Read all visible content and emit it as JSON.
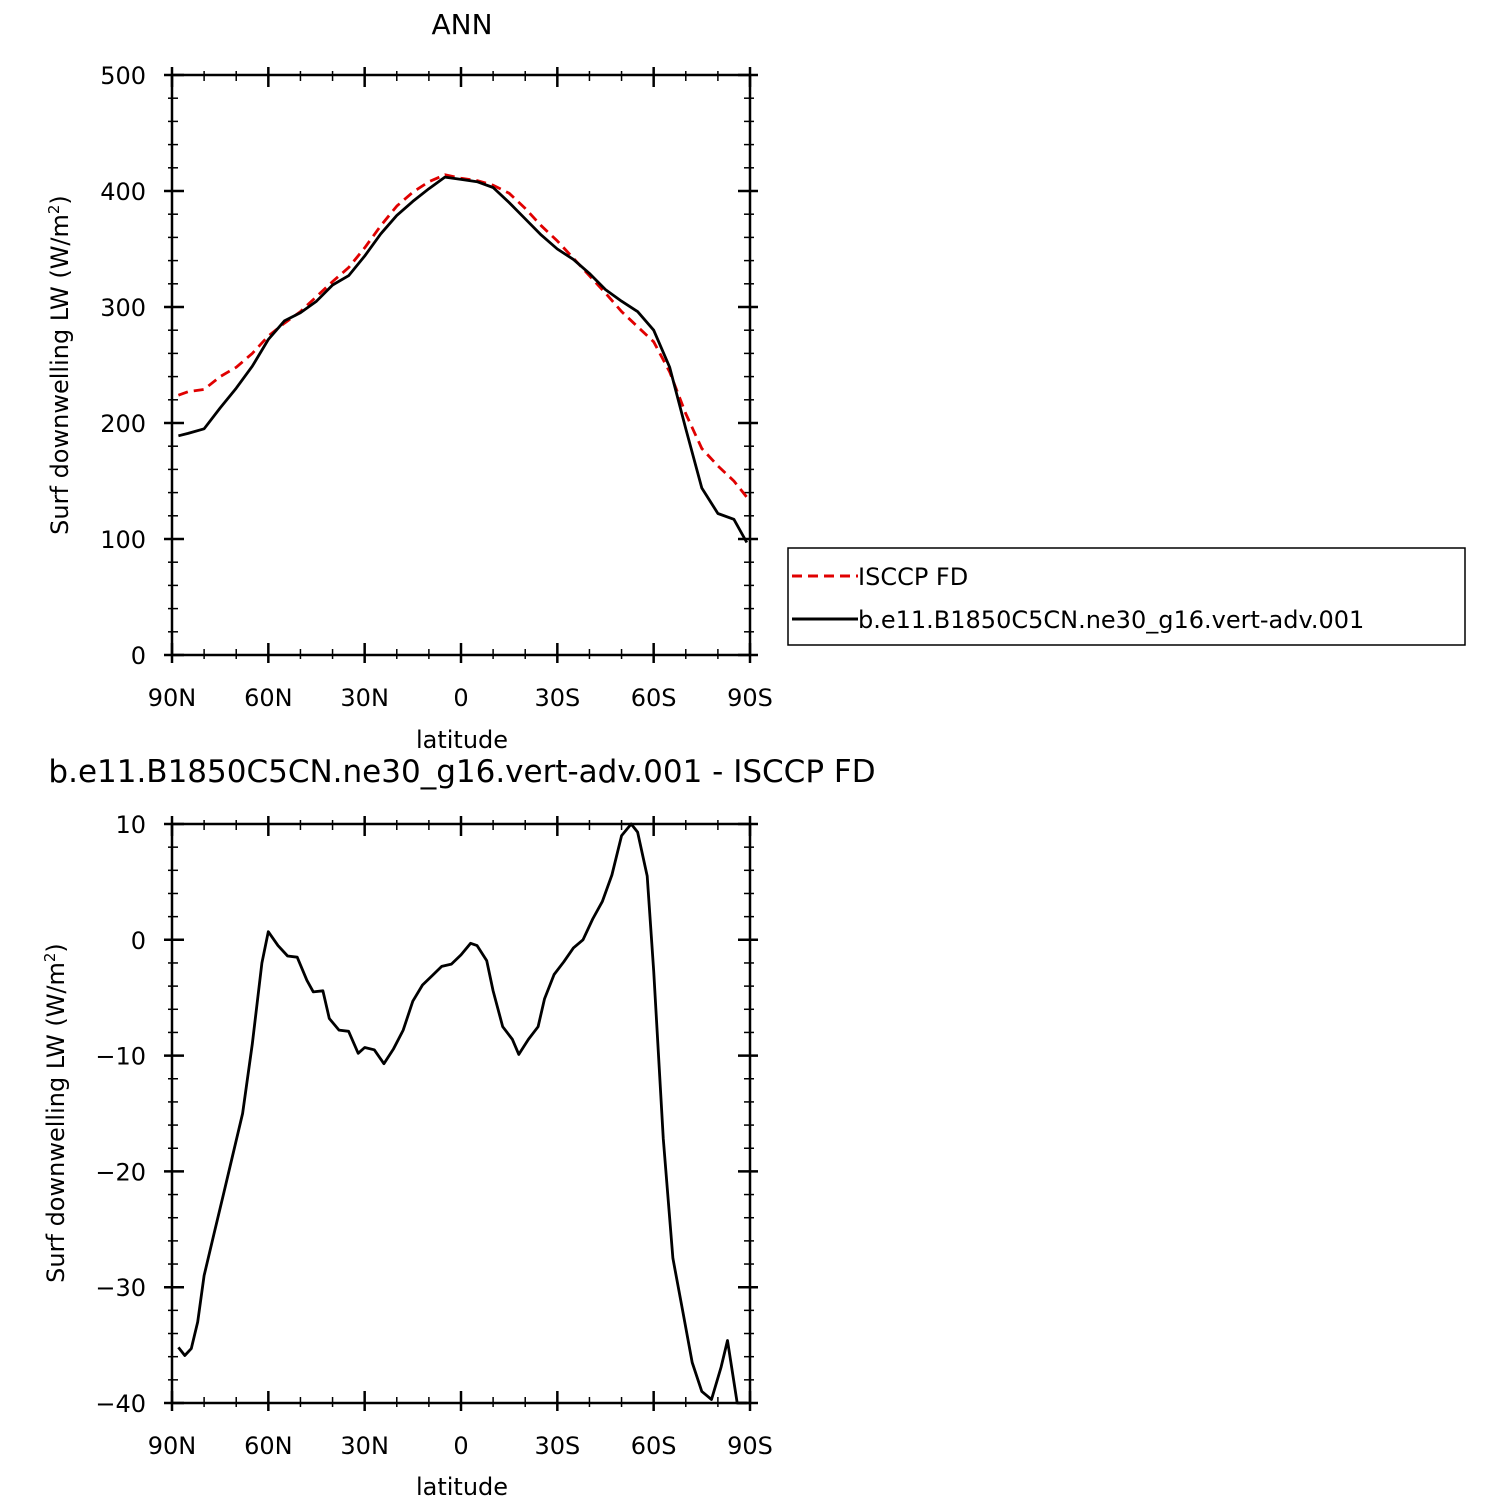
{
  "chart_data": [
    {
      "type": "line",
      "title": "ANN",
      "xlabel": "latitude",
      "ylabel": "Surf downwelling LW (W/m",
      "ylabel_sup": "2",
      "ylabel_close": ")",
      "xlim": [
        90,
        -90
      ],
      "ylim": [
        0,
        500
      ],
      "x_ticks": [
        90,
        60,
        30,
        0,
        -30,
        -60,
        -90
      ],
      "x_tick_labels": [
        "90N",
        "60N",
        "30N",
        "0",
        "30S",
        "60S",
        "90S"
      ],
      "y_ticks": [
        0,
        100,
        200,
        300,
        400,
        500
      ],
      "y_tick_labels": [
        "0",
        "100",
        "200",
        "300",
        "400",
        "500"
      ],
      "legend_position": "right, outside plot",
      "series": [
        {
          "name": "ISCCP FD",
          "color": "#e00000",
          "dash": "dashed",
          "x": [
            88,
            85,
            80,
            75,
            70,
            65,
            60,
            55,
            50,
            45,
            40,
            35,
            30,
            25,
            20,
            15,
            10,
            5,
            0,
            -5,
            -10,
            -15,
            -20,
            -25,
            -30,
            -35,
            -40,
            -45,
            -50,
            -55,
            -60,
            -65,
            -70,
            -75,
            -80,
            -85,
            -89
          ],
          "y": [
            224,
            227,
            229,
            240,
            248,
            260,
            275,
            286,
            296,
            309,
            322,
            334,
            351,
            370,
            387,
            399,
            408,
            414,
            411,
            409,
            405,
            398,
            385,
            370,
            357,
            342,
            327,
            312,
            296,
            283,
            270,
            244,
            208,
            178,
            163,
            150,
            136
          ]
        },
        {
          "name": "b.e11.B1850C5CN.ne30_g16.vert-adv.001",
          "color": "#000000",
          "dash": "solid",
          "x": [
            88,
            85,
            80,
            75,
            70,
            65,
            60,
            55,
            50,
            45,
            40,
            35,
            30,
            25,
            20,
            15,
            10,
            5,
            0,
            -5,
            -10,
            -15,
            -20,
            -25,
            -30,
            -35,
            -40,
            -45,
            -50,
            -55,
            -60,
            -65,
            -70,
            -75,
            -80,
            -85,
            -89
          ],
          "y": [
            189,
            191,
            195,
            213,
            230,
            249,
            272,
            288,
            295,
            305,
            319,
            327,
            344,
            363,
            379,
            391,
            402,
            412,
            410,
            408,
            403,
            390,
            376,
            362,
            350,
            341,
            329,
            315,
            305,
            296,
            280,
            248,
            195,
            144,
            122,
            117,
            97
          ]
        }
      ]
    },
    {
      "type": "line",
      "title": "b.e11.B1850C5CN.ne30_g16.vert-adv.001 - ISCCP FD",
      "xlabel": "latitude",
      "ylabel": "Surf downwelling LW (W/m",
      "ylabel_sup": "2",
      "ylabel_close": ")",
      "xlim": [
        90,
        -90
      ],
      "ylim": [
        -40,
        10
      ],
      "x_ticks": [
        90,
        60,
        30,
        0,
        -30,
        -60,
        -90
      ],
      "x_tick_labels": [
        "90N",
        "60N",
        "30N",
        "0",
        "30S",
        "60S",
        "90S"
      ],
      "y_ticks": [
        10,
        0,
        -10,
        -20,
        -30,
        -40
      ],
      "y_tick_labels": [
        "10",
        "0",
        "−10",
        "−20",
        "−30",
        "−40"
      ],
      "series": [
        {
          "color": "#000000",
          "x": [
            88,
            86,
            84,
            82,
            80,
            77,
            74,
            71,
            68,
            65,
            62,
            60,
            57,
            54,
            51,
            48,
            46,
            43,
            41,
            38,
            35,
            32,
            30,
            27,
            24,
            21,
            18,
            15,
            12,
            9,
            6,
            3,
            0,
            -3,
            -5,
            -8,
            -10,
            -13,
            -16,
            -18,
            -21,
            -24,
            -26,
            -29,
            -32,
            -35,
            -38,
            -41,
            -44,
            -47,
            -50,
            -53,
            -55,
            -58,
            -60,
            -63,
            -66,
            -69,
            -72,
            -75,
            -78,
            -81,
            -83,
            -86,
            -89
          ],
          "y": [
            -35.2,
            -35.9,
            -35.3,
            -33,
            -29,
            -25.5,
            -22,
            -18.5,
            -15,
            -9,
            -2,
            0.7,
            -0.5,
            -1.4,
            -1.5,
            -3.5,
            -4.5,
            -4.4,
            -6.8,
            -7.8,
            -7.9,
            -9.8,
            -9.3,
            -9.5,
            -10.7,
            -9.4,
            -7.8,
            -5.3,
            -3.9,
            -3.1,
            -2.3,
            -2.1,
            -1.3,
            -0.3,
            -0.5,
            -1.8,
            -4.4,
            -7.5,
            -8.6,
            -9.9,
            -8.6,
            -7.5,
            -5.1,
            -3,
            -1.9,
            -0.7,
            0,
            1.8,
            3.3,
            5.6,
            9,
            10,
            9.3,
            5.5,
            -2.7,
            -17.2,
            -27.5,
            -32,
            -36.5,
            -39,
            -39.7,
            -36.9,
            -34.6,
            -40,
            -40
          ]
        }
      ]
    }
  ]
}
